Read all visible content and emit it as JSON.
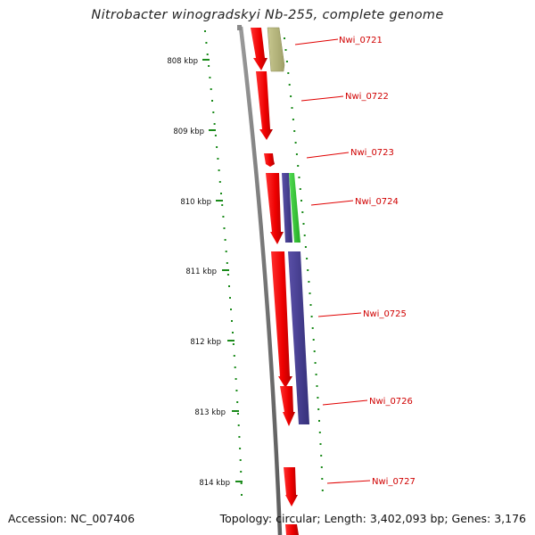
{
  "title": "Nitrobacter winogradskyi Nb-255, complete genome",
  "footer": {
    "accession": "Accession: NC_007406",
    "topology": "Topology: circular; Length: 3,402,093 bp; Genes: 3,176"
  },
  "ticks": [
    "808 kbp",
    "809 kbp",
    "810 kbp",
    "811 kbp",
    "812 kbp",
    "813 kbp",
    "814 kbp"
  ],
  "genes": [
    "Nwi_0721",
    "Nwi_0722",
    "Nwi_0723",
    "Nwi_0724",
    "Nwi_0725",
    "Nwi_0726",
    "Nwi_0727"
  ],
  "colors": {
    "backbone": "#808080",
    "gene": "#ee0000",
    "olive_feature": "#b8b878",
    "blue_feature": "#4a4090",
    "green_feature": "#33cc33",
    "dots": "#1a8a1a",
    "label": "#d00000"
  }
}
